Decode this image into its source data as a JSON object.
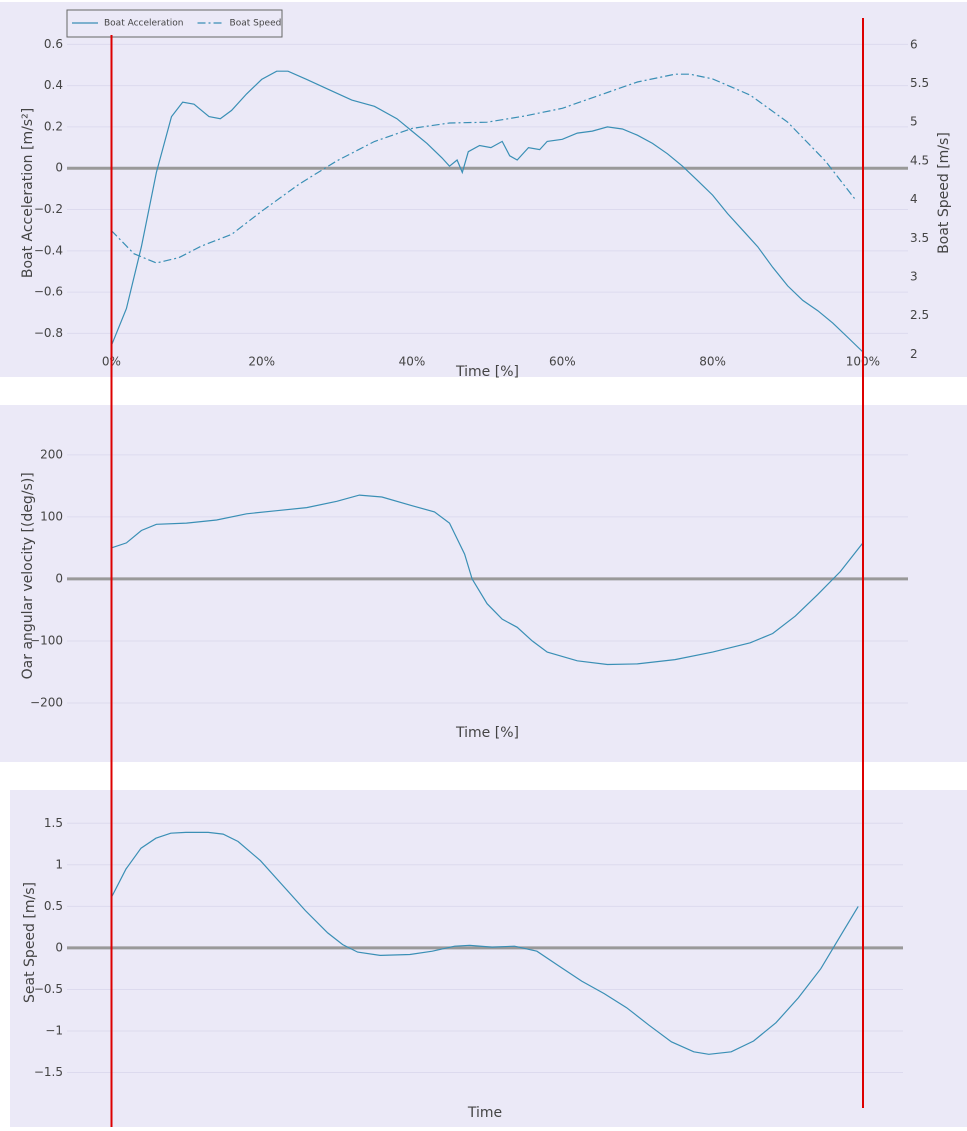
{
  "chart_data": [
    {
      "type": "line",
      "xlabel": "Time [%]",
      "ylabel": "Boat Acceleration [m/s²]",
      "y2label": "Boat Speed [m/s]",
      "xlim": [
        -5.9,
        106
      ],
      "xticks": [
        {
          "value": 0,
          "label": "0%"
        },
        {
          "value": 20,
          "label": "20%"
        },
        {
          "value": 40,
          "label": "40%"
        },
        {
          "value": 60,
          "label": "60%"
        },
        {
          "value": 80,
          "label": "80%"
        },
        {
          "value": 100,
          "label": "100%"
        }
      ],
      "ylim": [
        -0.89,
        0.65
      ],
      "yticks": [
        0.6,
        0.4,
        0.2,
        0,
        {
          "value": -0.2,
          "label": "−0.2"
        },
        {
          "value": -0.4,
          "label": "−0.4"
        },
        {
          "value": -0.6,
          "label": "−0.6"
        },
        {
          "value": -0.8,
          "label": "−0.8"
        }
      ],
      "y2lim": [
        2.03,
        6.14
      ],
      "y2ticks": [
        2,
        2.5,
        3,
        3.5,
        4,
        4.5,
        5,
        5.5,
        6
      ],
      "grid": true,
      "legend": "top-left",
      "series": [
        {
          "name": "Boat Acceleration",
          "color": "#3a8fb5",
          "dash": "solid",
          "x": [
            0,
            2,
            4,
            6,
            8,
            9.5,
            11,
            13,
            14.5,
            16,
            18,
            20,
            22,
            23.5,
            26,
            29,
            32,
            35,
            38,
            40,
            42,
            44,
            45,
            46,
            46.7,
            47.5,
            49,
            50.5,
            52,
            53,
            54,
            55.5,
            57,
            58,
            60,
            62,
            64,
            66,
            68,
            70,
            72,
            74,
            76,
            78,
            80,
            82,
            84,
            86,
            88,
            90,
            92,
            94,
            96,
            98,
            100
          ],
          "values": [
            -0.86,
            -0.68,
            -0.38,
            -0.02,
            0.25,
            0.32,
            0.31,
            0.25,
            0.24,
            0.28,
            0.36,
            0.43,
            0.47,
            0.47,
            0.43,
            0.38,
            0.33,
            0.3,
            0.24,
            0.18,
            0.12,
            0.05,
            0.01,
            0.04,
            -0.02,
            0.08,
            0.11,
            0.1,
            0.13,
            0.06,
            0.04,
            0.1,
            0.09,
            0.13,
            0.14,
            0.17,
            0.18,
            0.2,
            0.19,
            0.16,
            0.12,
            0.07,
            0.01,
            -0.06,
            -0.13,
            -0.22,
            -0.3,
            -0.38,
            -0.48,
            -0.57,
            -0.64,
            -0.69,
            -0.75,
            -0.82,
            -0.89
          ]
        },
        {
          "name": "Boat Speed",
          "color": "#3a8fb5",
          "dash": "dashdot",
          "axis": "y2",
          "x": [
            0,
            3,
            6,
            9,
            12,
            16,
            20,
            25,
            30,
            35,
            40,
            45,
            50,
            55,
            60,
            65,
            70,
            75,
            77,
            80,
            85,
            90,
            95,
            99
          ],
          "values": [
            3.6,
            3.3,
            3.18,
            3.25,
            3.4,
            3.55,
            3.85,
            4.2,
            4.5,
            4.75,
            4.92,
            4.99,
            5.0,
            5.08,
            5.18,
            5.35,
            5.52,
            5.62,
            5.62,
            5.56,
            5.35,
            5.0,
            4.5,
            4.0
          ]
        }
      ]
    },
    {
      "type": "line",
      "xlabel": "Time [%]",
      "ylabel": "Oar angular velocity [(deg/s)]",
      "xlim": [
        -5.9,
        106
      ],
      "ylim": [
        -230,
        240
      ],
      "yticks": [
        200,
        100,
        0,
        {
          "value": -100,
          "label": "−100"
        },
        {
          "value": -200,
          "label": "−200"
        }
      ],
      "grid": true,
      "series": [
        {
          "color": "#3a8fb5",
          "dash": "solid",
          "x": [
            0,
            2,
            4,
            6,
            10,
            14,
            18,
            22,
            26,
            30,
            33,
            36,
            40,
            43,
            45,
            47,
            48,
            50,
            52,
            54,
            56,
            58,
            62,
            66,
            70,
            75,
            80,
            85,
            88,
            91,
            94,
            97,
            100
          ],
          "values": [
            50,
            58,
            78,
            88,
            90,
            95,
            105,
            110,
            115,
            125,
            135,
            132,
            118,
            108,
            90,
            40,
            0,
            -40,
            -65,
            -78,
            -100,
            -118,
            -132,
            -138,
            -137,
            -130,
            -118,
            -103,
            -88,
            -60,
            -25,
            12,
            58
          ]
        }
      ]
    },
    {
      "type": "line",
      "xlabel": "Time",
      "ylabel": "Seat Speed [m/s]",
      "xlim": [
        -5.9,
        106
      ],
      "ylim": [
        -1.65,
        1.78
      ],
      "yticks": [
        1.5,
        1,
        0.5,
        0,
        {
          "value": -0.5,
          "label": "−0.5"
        },
        {
          "value": -1,
          "label": "−1"
        },
        {
          "value": -1.5,
          "label": "−1.5"
        }
      ],
      "grid": true,
      "series": [
        {
          "color": "#3a8fb5",
          "dash": "solid",
          "x": [
            0,
            2,
            4,
            6,
            8,
            10,
            13,
            15,
            17,
            20,
            23,
            26,
            29,
            31,
            33,
            36,
            40,
            43,
            46,
            48,
            51,
            54,
            57,
            60,
            63,
            66,
            69,
            72,
            75,
            78,
            80,
            83,
            86,
            89,
            92,
            95,
            98,
            100
          ],
          "values": [
            0.6,
            0.95,
            1.2,
            1.32,
            1.38,
            1.39,
            1.39,
            1.37,
            1.28,
            1.05,
            0.75,
            0.45,
            0.18,
            0.04,
            -0.05,
            -0.09,
            -0.08,
            -0.04,
            0.02,
            0.03,
            0.01,
            0.02,
            -0.04,
            -0.22,
            -0.4,
            -0.55,
            -0.72,
            -0.93,
            -1.13,
            -1.25,
            -1.28,
            -1.25,
            -1.12,
            -0.9,
            -0.6,
            -0.25,
            0.2,
            0.5
          ]
        }
      ]
    }
  ]
}
